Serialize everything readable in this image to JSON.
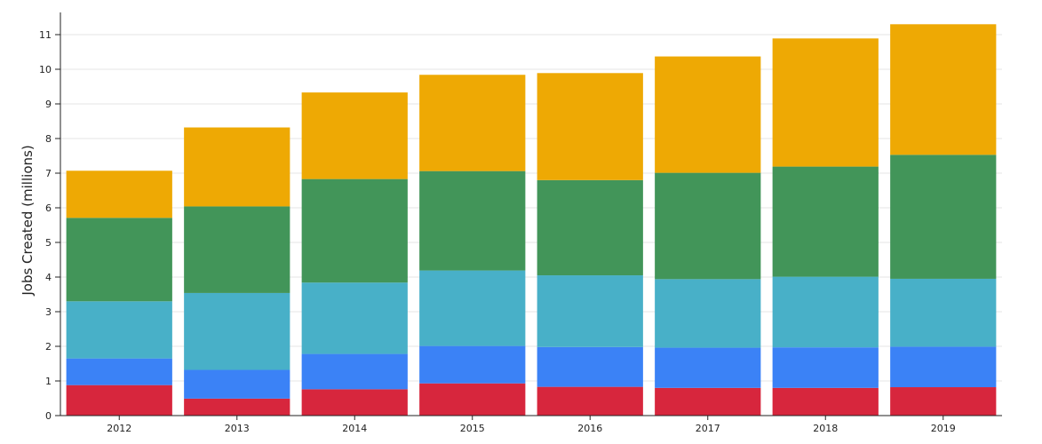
{
  "chart_data": {
    "type": "bar",
    "stacked": true,
    "title": "",
    "xlabel": "",
    "ylabel": "Jobs Created (millions)",
    "ylim": [
      0,
      11.5
    ],
    "yticks": [
      0,
      1,
      2,
      3,
      4,
      5,
      6,
      7,
      8,
      9,
      10,
      11
    ],
    "grid": true,
    "categories": [
      "2012",
      "2013",
      "2014",
      "2015",
      "2016",
      "2017",
      "2018",
      "2019"
    ],
    "series": [
      {
        "color": "#d7263d",
        "values": [
          0.88,
          0.49,
          0.76,
          0.93,
          0.83,
          0.8,
          0.8,
          0.82
        ]
      },
      {
        "color": "#3b82f6",
        "values": [
          0.77,
          0.83,
          1.02,
          1.08,
          1.15,
          1.16,
          1.17,
          1.17
        ]
      },
      {
        "color": "#48b0c8",
        "values": [
          1.65,
          2.22,
          2.06,
          2.18,
          2.07,
          1.98,
          2.04,
          1.96
        ]
      },
      {
        "color": "#429559",
        "values": [
          2.41,
          2.5,
          2.99,
          2.87,
          2.75,
          3.07,
          3.18,
          3.58
        ]
      },
      {
        "color": "#eea904",
        "values": [
          1.36,
          2.28,
          2.5,
          2.78,
          3.09,
          3.36,
          3.7,
          3.77
        ]
      }
    ]
  }
}
